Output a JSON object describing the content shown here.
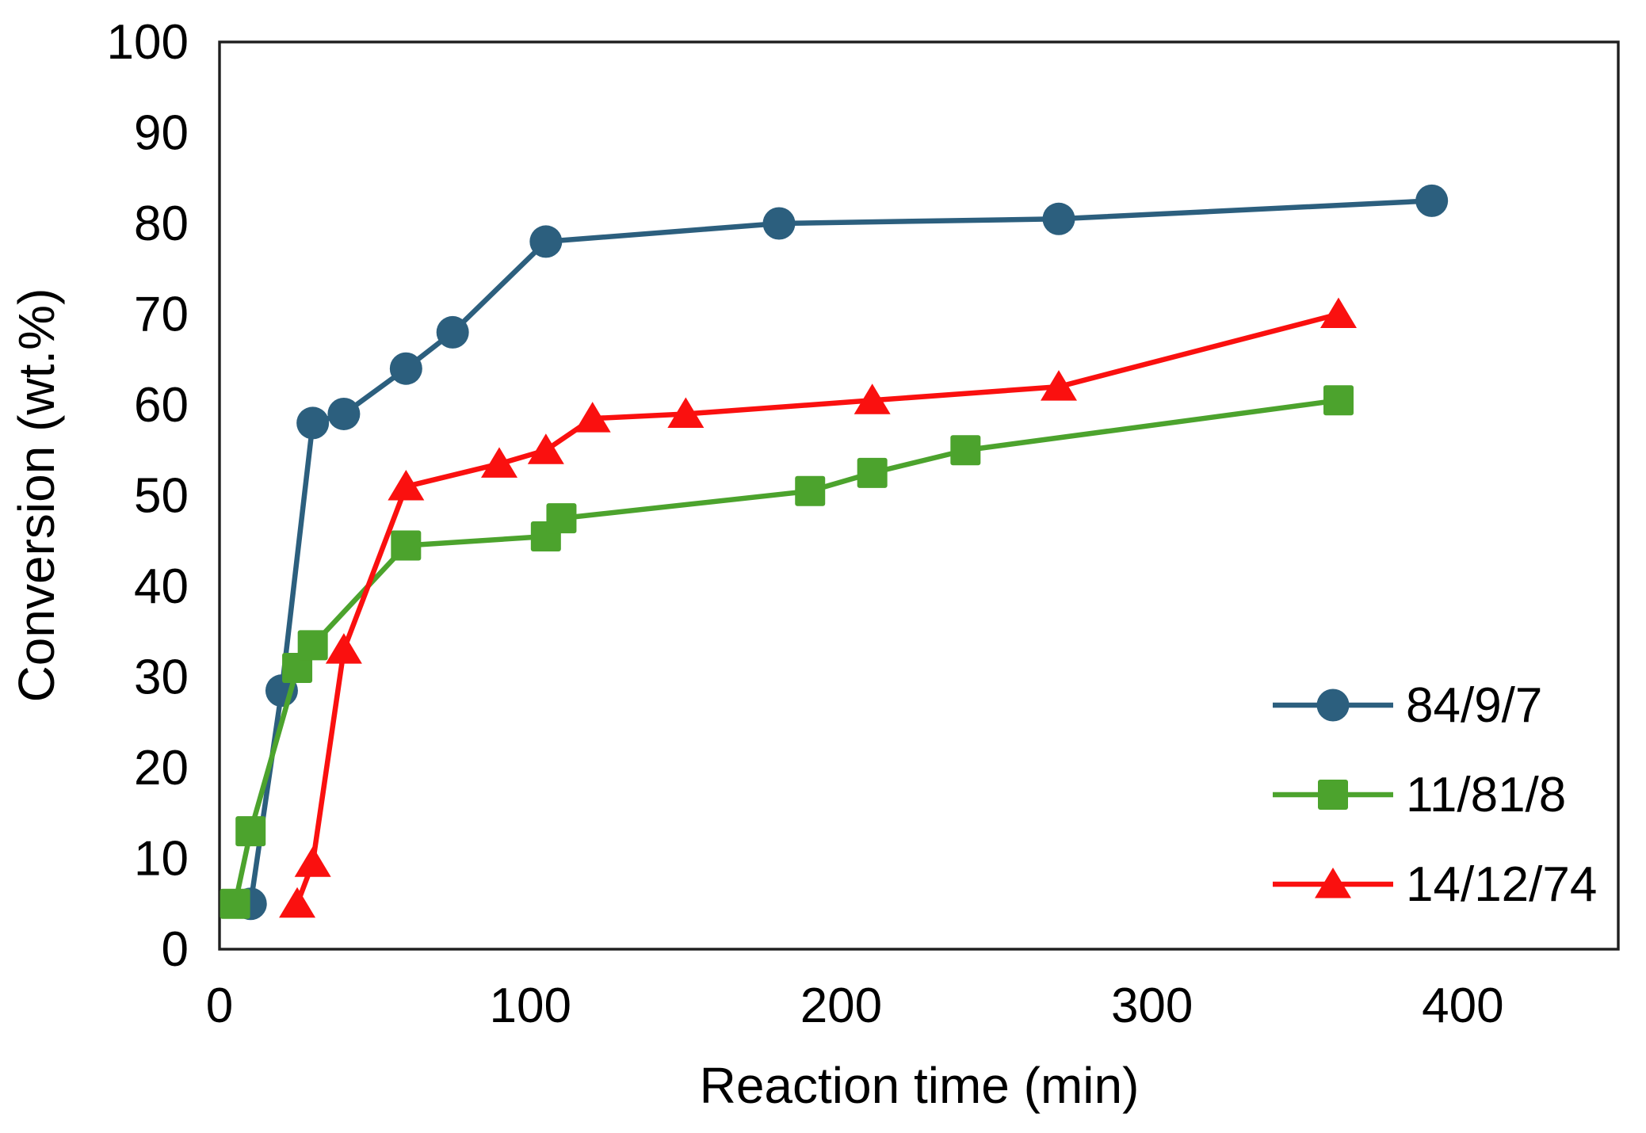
{
  "chart_data": {
    "type": "line",
    "title": "",
    "xlabel": "Reaction time (min)",
    "ylabel": "Conversion (wt.%)",
    "xlim": [
      0,
      450
    ],
    "ylim": [
      0,
      100
    ],
    "x_ticks": [
      0,
      100,
      200,
      300,
      400
    ],
    "y_ticks": [
      0,
      10,
      20,
      30,
      40,
      50,
      60,
      70,
      80,
      90,
      100
    ],
    "grid": false,
    "plot_background": "#ffffff",
    "frame_color": "#1f1f1f",
    "legend_position": "inside-lower-right",
    "series": [
      {
        "name": "84/9/7",
        "color": "#2c5f7e",
        "marker": "circle",
        "points": [
          [
            10,
            5
          ],
          [
            20,
            28.5
          ],
          [
            30,
            58
          ],
          [
            40,
            59
          ],
          [
            60,
            64
          ],
          [
            75,
            68
          ],
          [
            105,
            78
          ],
          [
            180,
            80
          ],
          [
            270,
            80.5
          ],
          [
            390,
            82.5
          ]
        ]
      },
      {
        "name": "11/81/8",
        "color": "#4ca32d",
        "marker": "square",
        "points": [
          [
            5,
            5
          ],
          [
            10,
            13
          ],
          [
            25,
            31
          ],
          [
            30,
            33.5
          ],
          [
            60,
            44.5
          ],
          [
            105,
            45.5
          ],
          [
            110,
            47.5
          ],
          [
            190,
            50.5
          ],
          [
            210,
            52.5
          ],
          [
            240,
            55
          ],
          [
            360,
            60.5
          ]
        ]
      },
      {
        "name": "14/12/74",
        "color": "#fa100f",
        "marker": "triangle",
        "points": [
          [
            25,
            5
          ],
          [
            30,
            9.5
          ],
          [
            40,
            33
          ],
          [
            60,
            51
          ],
          [
            90,
            53.5
          ],
          [
            105,
            55
          ],
          [
            120,
            58.5
          ],
          [
            150,
            59
          ],
          [
            210,
            60.5
          ],
          [
            270,
            62
          ],
          [
            360,
            70
          ]
        ]
      }
    ]
  }
}
